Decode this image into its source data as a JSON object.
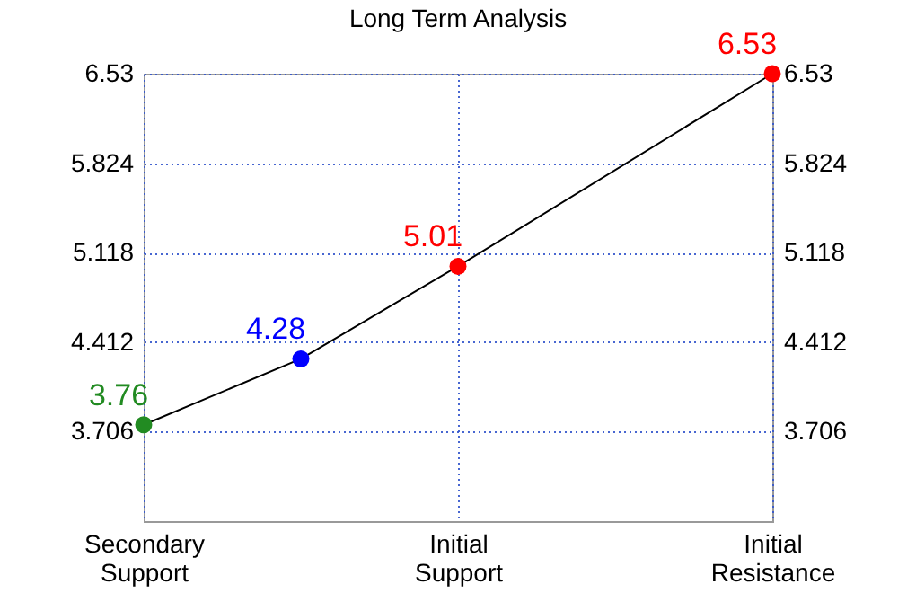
{
  "chart_data": {
    "type": "line",
    "title": "Long Term Analysis",
    "categories": [
      "Secondary Support",
      null,
      "Initial Support",
      null,
      "Initial Resistance"
    ],
    "ylim": [
      3.0,
      6.53
    ],
    "yticks": [
      3.706,
      4.412,
      5.118,
      5.824,
      6.53
    ],
    "y2lim": [
      3.0,
      6.53
    ],
    "y2ticks": [
      3.706,
      4.412,
      5.118,
      5.824,
      6.53
    ],
    "series": [
      {
        "color": "#000000",
        "colors": [
          "#228b22",
          "#0000ff",
          "#ff0000",
          null,
          "#ff0000"
        ],
        "values": [
          3.76,
          4.28,
          5.01,
          null,
          6.53
        ],
        "value_labels": [
          "3.76",
          "4.28",
          "5.01",
          null,
          "6.53"
        ]
      }
    ],
    "grid": true,
    "marker": "circle",
    "line_style": "solid"
  }
}
